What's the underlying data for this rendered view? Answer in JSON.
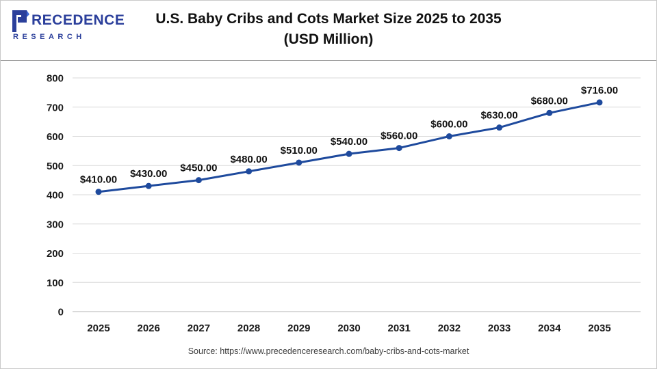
{
  "header": {
    "logo": {
      "word": "RECEDENCE",
      "sub": "RESEARCH",
      "mark_icon": "precedence-p-logo",
      "brand_color": "#2b3f9b",
      "accent_color": "#3f6ad8"
    },
    "title_line1": "U.S. Baby Cribs and Cots Market Size 2025 to 2035",
    "title_line2": "(USD Million)"
  },
  "footer": {
    "source": "Source: https://www.precedenceresearch.com/baby-cribs-and-cots-market"
  },
  "chart_data": {
    "type": "line",
    "title": "U.S. Baby Cribs and Cots Market Size 2025 to 2035 (USD Million)",
    "categories": [
      "2025",
      "2026",
      "2027",
      "2028",
      "2029",
      "2030",
      "2031",
      "2032",
      "2033",
      "2034",
      "2035"
    ],
    "values": [
      410,
      430,
      450,
      480,
      510,
      540,
      560,
      600,
      630,
      680,
      716
    ],
    "point_labels": [
      "$410.00",
      "$430.00",
      "$450.00",
      "$480.00",
      "$510.00",
      "$540.00",
      "$560.00",
      "$600.00",
      "$630.00",
      "$680.00",
      "$716.00"
    ],
    "xlabel": "",
    "ylabel": "",
    "ylim": [
      0,
      800
    ],
    "ytick_step": 100,
    "ytick_labels": [
      "0",
      "100",
      "200",
      "300",
      "400",
      "500",
      "600",
      "700",
      "800"
    ],
    "grid": true,
    "legend": "none",
    "line_color": "#1e4a9d",
    "grid_color": "#d8d8d8",
    "label_color": "#111111"
  }
}
